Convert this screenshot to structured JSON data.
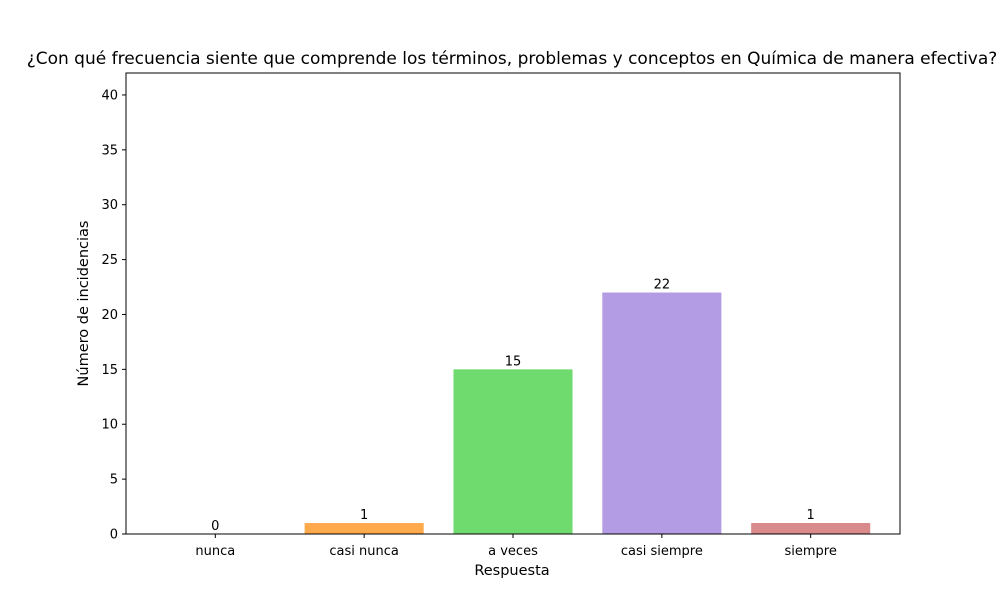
{
  "chart_data": {
    "type": "bar",
    "title": "¿Con qué frecuencia siente que comprende los términos, problemas y conceptos en Química de manera efectiva?",
    "xlabel": "Respuesta",
    "ylabel": "Número de incidencias",
    "categories": [
      "nunca",
      "casi nunca",
      "a veces",
      "casi siempre",
      "siempre"
    ],
    "values": [
      0,
      1,
      15,
      22,
      1
    ],
    "data_labels": [
      "0",
      "1",
      "15",
      "22",
      "1"
    ],
    "colors": [
      "#1f77b4",
      "#ffa94d",
      "#6fdb6f",
      "#b39ce3",
      "#d98a8a"
    ],
    "ylim": [
      0,
      42
    ],
    "yticks": [
      0,
      5,
      10,
      15,
      20,
      25,
      30,
      35,
      40
    ],
    "grid": false,
    "legend": "none"
  }
}
